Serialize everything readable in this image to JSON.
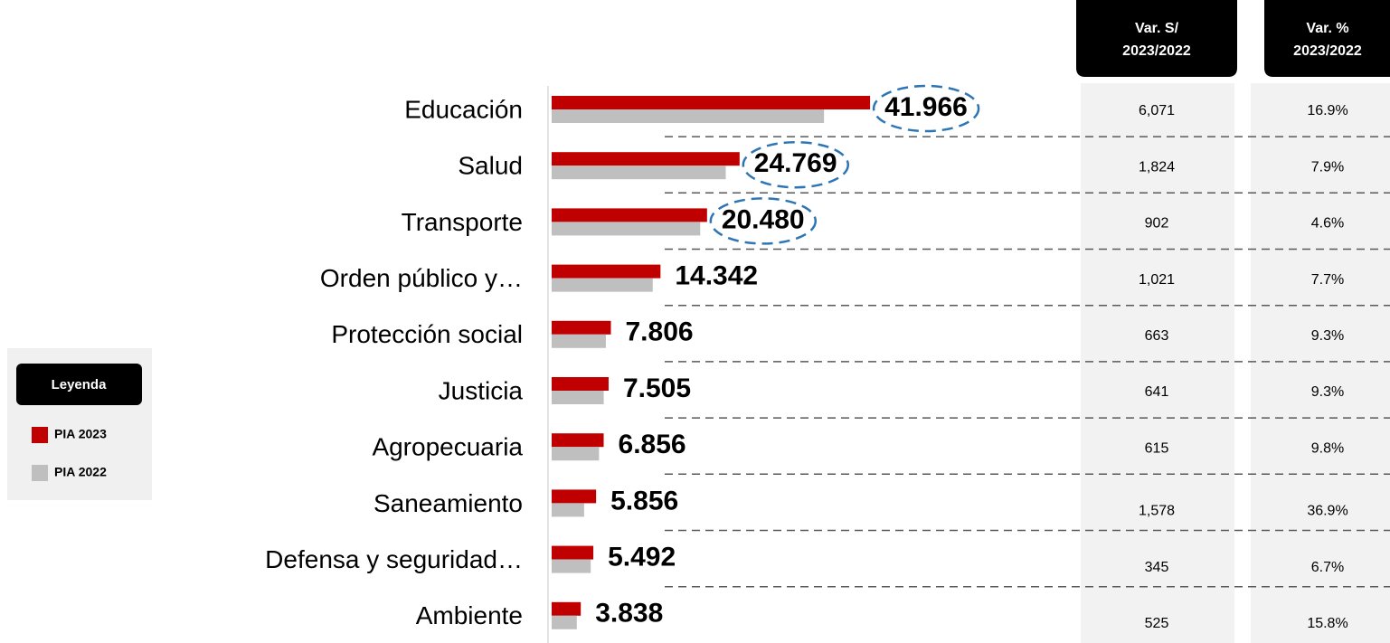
{
  "chart_data": {
    "type": "bar",
    "orientation": "horizontal",
    "categories": [
      "Educación",
      "Salud",
      "Transporte",
      "Orden público y…",
      "Protección social",
      "Justicia",
      "Agropecuaria",
      "Saneamiento",
      "Defensa y seguridad…",
      "Ambiente"
    ],
    "series": [
      {
        "name": "PIA 2023",
        "color": "#c00000",
        "values": [
          41.966,
          24.769,
          20.48,
          14.342,
          7.806,
          7.505,
          6.856,
          5.856,
          5.492,
          3.838
        ]
      },
      {
        "name": "PIA 2022",
        "color": "#bfbfbf",
        "values": [
          35.895,
          22.945,
          19.578,
          13.321,
          7.143,
          6.864,
          6.241,
          4.278,
          5.147,
          3.313
        ]
      }
    ],
    "value_labels": [
      "41.966",
      "24.769",
      "20.480",
      "14.342",
      "7.806",
      "7.505",
      "6.856",
      "5.856",
      "5.492",
      "3.838"
    ],
    "xlim": [
      0,
      50
    ],
    "legend_title": "Leyenda"
  },
  "table": {
    "headers": [
      [
        "Var. S/",
        "2023/2022"
      ],
      [
        "Var. %",
        "2023/2022"
      ]
    ],
    "rows": [
      [
        "6,071",
        "16.9%"
      ],
      [
        "1,824",
        "7.9%"
      ],
      [
        "902",
        "4.6%"
      ],
      [
        "1,021",
        "7.7%"
      ],
      [
        "663",
        "9.3%"
      ],
      [
        "641",
        "9.3%"
      ],
      [
        "615",
        "9.8%"
      ],
      [
        "1,578",
        "36.9%"
      ],
      [
        "345",
        "6.7%"
      ],
      [
        "525",
        "15.8%"
      ]
    ]
  }
}
